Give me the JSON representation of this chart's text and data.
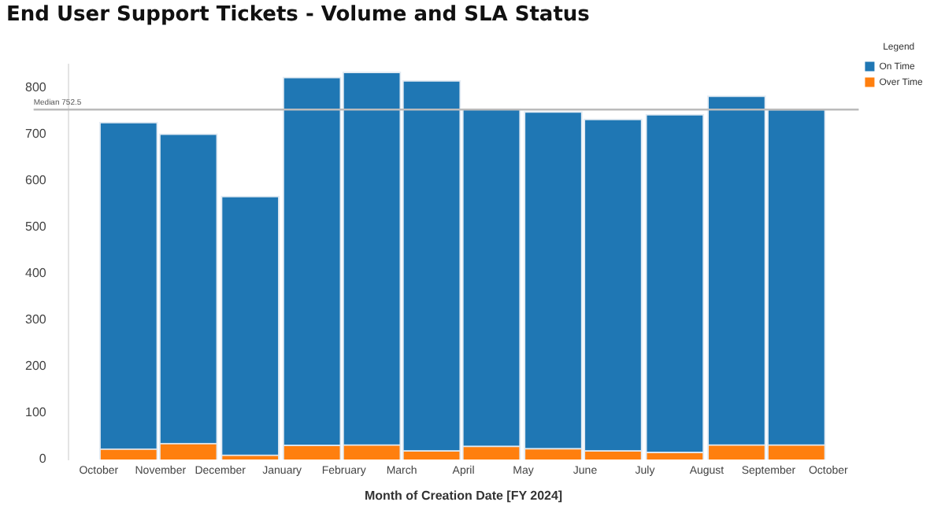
{
  "chart_data": {
    "type": "bar",
    "title": "End User Support Tickets - Volume and SLA Status",
    "xlabel": "Month of Creation Date [FY 2024]",
    "legend_title": "Legend",
    "x": [
      "2023-10-16",
      "2023-11-15",
      "2023-12-16",
      "2024-01-16",
      "2024-02-15",
      "2024-03-16",
      "2024-04-15",
      "2024-05-16",
      "2024-06-15",
      "2024-07-16",
      "2024-08-16",
      "2024-09-15"
    ],
    "series": [
      {
        "name": "Over Time",
        "color": "#ff7f0e",
        "values": [
          23,
          35,
          10,
          31,
          32,
          19,
          29,
          24,
          19,
          16,
          32,
          32
        ]
      },
      {
        "name": "On Time",
        "color": "#1f77b4",
        "values": [
          702,
          665,
          556,
          791,
          801,
          796,
          725,
          724,
          713,
          726,
          750,
          721
        ]
      }
    ],
    "stacked": true,
    "xlim": [
      "2023-10",
      "2024-10"
    ],
    "xticks": [
      {
        "value": "2023-10",
        "label": "October"
      },
      {
        "value": "2023-11",
        "label": "November"
      },
      {
        "value": "2023-12",
        "label": "December"
      },
      {
        "value": "2024-01",
        "label": "January"
      },
      {
        "value": "2024-02",
        "label": "February"
      },
      {
        "value": "2024-03",
        "label": "March"
      },
      {
        "value": "2024-04",
        "label": "April"
      },
      {
        "value": "2024-05",
        "label": "May"
      },
      {
        "value": "2024-06",
        "label": "June"
      },
      {
        "value": "2024-07",
        "label": "July"
      },
      {
        "value": "2024-08",
        "label": "August"
      },
      {
        "value": "2024-09",
        "label": "September"
      },
      {
        "value": "2024-10",
        "label": "October"
      }
    ],
    "ylim": [
      0,
      850
    ],
    "yticks": [
      0,
      100,
      200,
      300,
      400,
      500,
      600,
      700,
      800
    ],
    "ref_lines": [
      {
        "axis": "y",
        "value": 752.5,
        "label": "Median 752.5",
        "color": "#bbbbbb"
      }
    ],
    "grid": false,
    "legend": "top right"
  }
}
